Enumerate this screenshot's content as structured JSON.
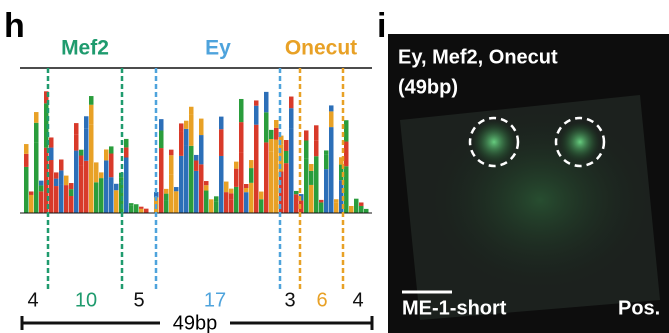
{
  "panel_h": {
    "label": "h",
    "motifs": [
      {
        "name": "Mef2",
        "color": "#1f9b6e"
      },
      {
        "name": "Ey",
        "color": "#4ea3dc"
      },
      {
        "name": "Onecut",
        "color": "#e8a126"
      }
    ],
    "segments": [
      {
        "length": "4",
        "color": "#111111"
      },
      {
        "length": "10",
        "color": "#1f9b6e"
      },
      {
        "length": "5",
        "color": "#111111"
      },
      {
        "length": "17",
        "color": "#4ea3dc"
      },
      {
        "length": "3",
        "color": "#111111"
      },
      {
        "length": "6",
        "color": "#e8a126"
      },
      {
        "length": "4",
        "color": "#111111"
      }
    ],
    "total": "49bp"
  },
  "panel_i": {
    "label": "i",
    "title": "Ey, Mef2, Onecut",
    "subtitle": "(49bp)",
    "construct": "ME-1-short",
    "result": "Pos."
  }
}
